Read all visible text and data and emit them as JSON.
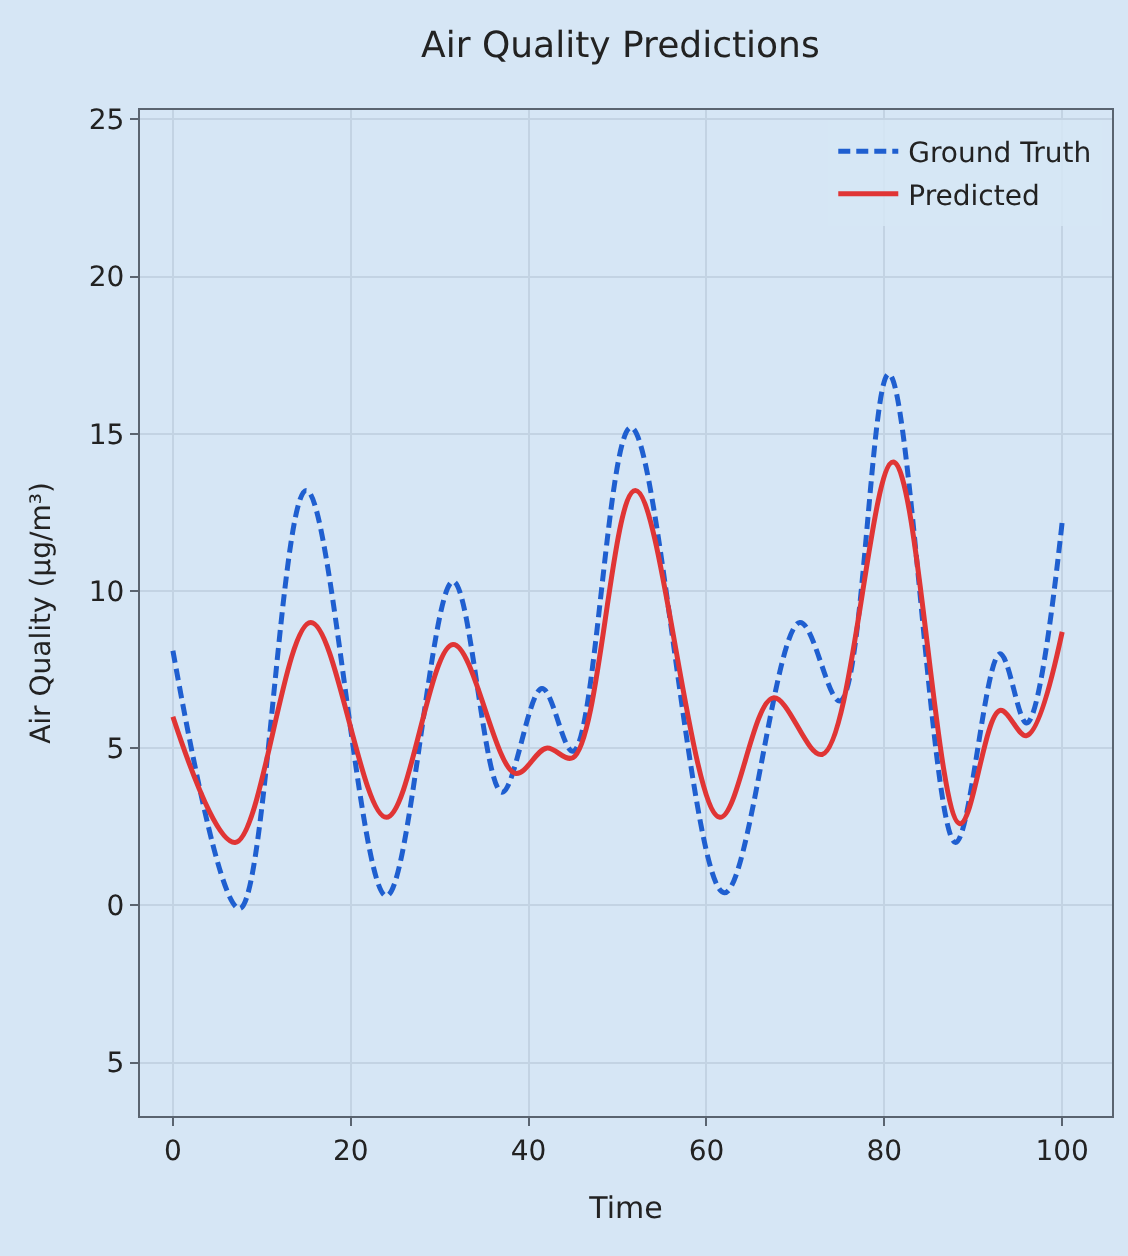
{
  "chart_data": {
    "type": "line",
    "title": "Air Quality Predictions",
    "xlabel": "Time",
    "ylabel": "Air Quality (µg/m³)",
    "series": [
      {
        "name": "Ground Truth",
        "color": "#1f5fd0",
        "line_style": "dashed",
        "x": [
          0,
          7.5,
          15,
          24,
          31.5,
          37,
          41.5,
          45,
          51.5,
          62,
          70.5,
          75,
          80.5,
          88,
          93,
          96,
          100
        ],
        "values": [
          8.1,
          -0.1,
          13.2,
          0.3,
          10.3,
          3.6,
          6.9,
          4.9,
          15.2,
          0.4,
          9.0,
          6.5,
          16.9,
          2.0,
          8.0,
          5.8,
          12.2
        ]
      },
      {
        "name": "Predicted",
        "color": "#e03535",
        "line_style": "solid",
        "x": [
          0,
          7,
          15.5,
          24,
          31.5,
          38.5,
          42,
          45,
          52,
          61.5,
          67.5,
          73,
          81,
          88.5,
          93,
          96,
          100
        ],
        "values": [
          6.0,
          2.0,
          9.0,
          2.8,
          8.3,
          4.2,
          5.0,
          4.7,
          13.2,
          2.8,
          6.6,
          4.8,
          14.1,
          2.6,
          6.2,
          5.4,
          8.7
        ]
      }
    ],
    "xlim": [
      -3.7,
      105.6
    ],
    "xticks": [
      0,
      20,
      40,
      60,
      80,
      100
    ],
    "ylim": [
      -6.7,
      25.3
    ],
    "yticks": [
      {
        "value": -5,
        "label": "5"
      },
      0,
      5,
      10,
      15,
      20,
      25
    ],
    "grid": true,
    "legend": "top right",
    "marker": "none"
  }
}
